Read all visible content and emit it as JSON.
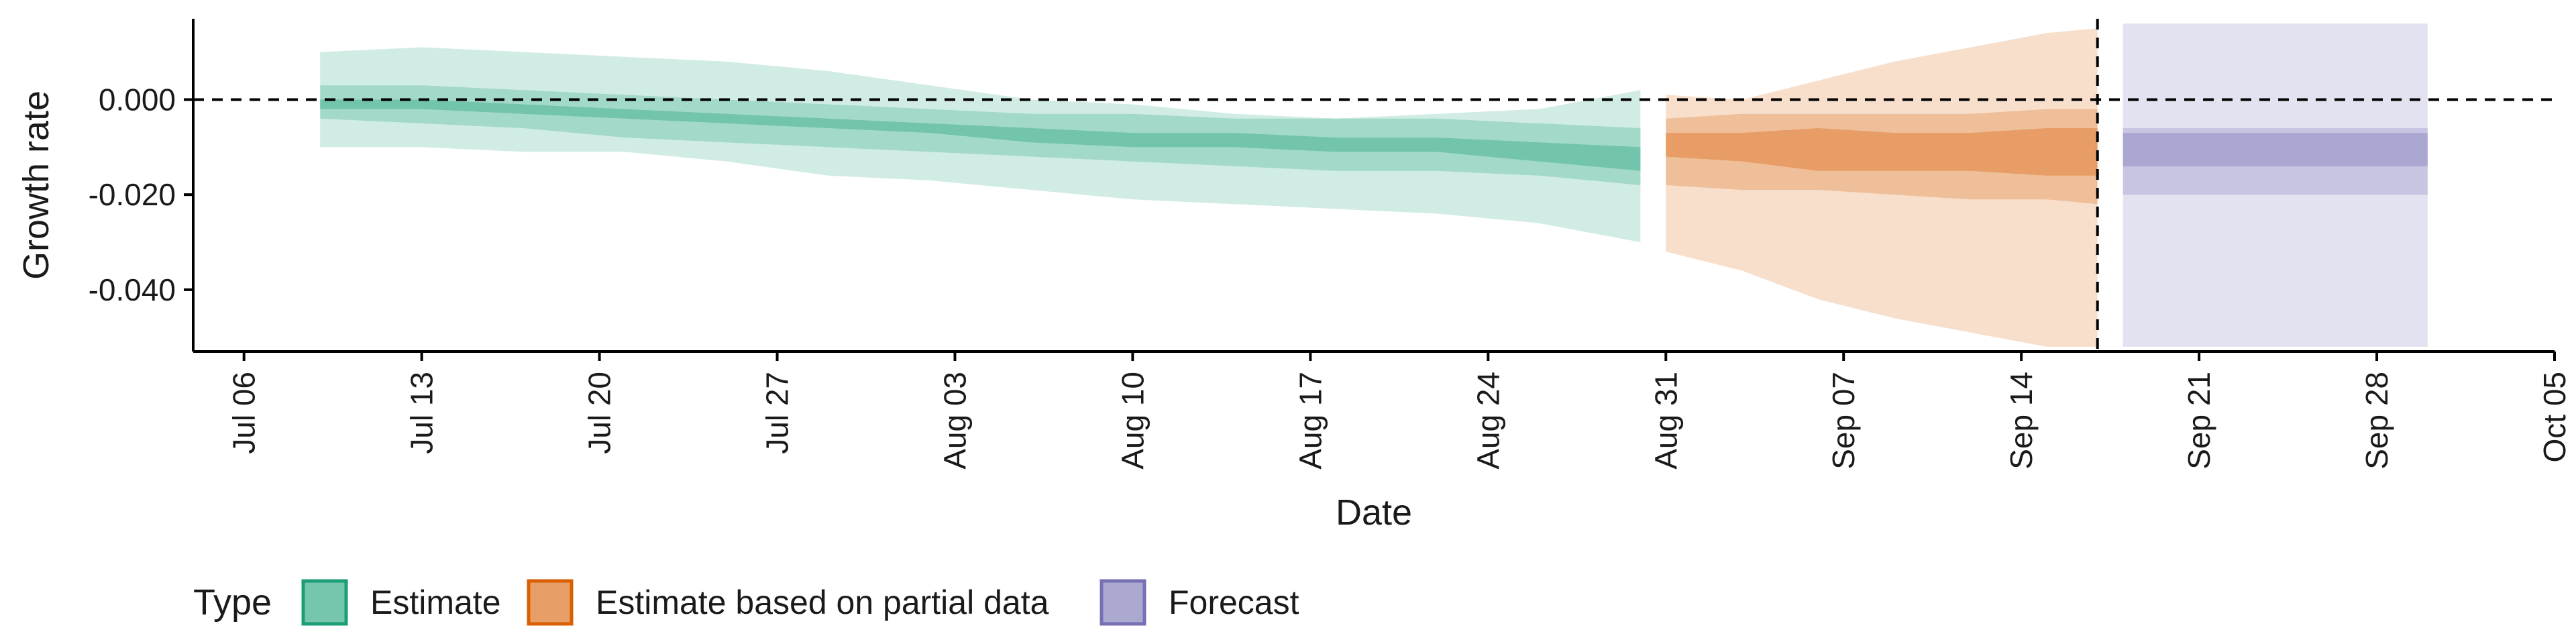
{
  "chart_data": {
    "type": "area",
    "title": "",
    "xlabel": "Date",
    "ylabel": "Growth rate",
    "x_range": [
      "2020-07-04",
      "2020-10-05"
    ],
    "ylim": [
      -0.053,
      0.017
    ],
    "x_ticks": [
      {
        "date": "2020-07-06",
        "label": "Jul 06"
      },
      {
        "date": "2020-07-13",
        "label": "Jul 13"
      },
      {
        "date": "2020-07-20",
        "label": "Jul 20"
      },
      {
        "date": "2020-07-27",
        "label": "Jul 27"
      },
      {
        "date": "2020-08-03",
        "label": "Aug 03"
      },
      {
        "date": "2020-08-10",
        "label": "Aug 10"
      },
      {
        "date": "2020-08-17",
        "label": "Aug 17"
      },
      {
        "date": "2020-08-24",
        "label": "Aug 24"
      },
      {
        "date": "2020-08-31",
        "label": "Aug 31"
      },
      {
        "date": "2020-09-07",
        "label": "Sep 07"
      },
      {
        "date": "2020-09-14",
        "label": "Sep 14"
      },
      {
        "date": "2020-09-21",
        "label": "Sep 21"
      },
      {
        "date": "2020-09-28",
        "label": "Sep 28"
      },
      {
        "date": "2020-10-05",
        "label": "Oct 05"
      }
    ],
    "y_ticks": [
      {
        "value": 0.0,
        "label": "0.000"
      },
      {
        "value": -0.02,
        "label": "-0.020"
      },
      {
        "value": -0.04,
        "label": "-0.040"
      }
    ],
    "hline_y": 0,
    "vline_date": "2020-09-17",
    "grid": false,
    "legend": {
      "title": "Type",
      "position": "bottom-left",
      "items": [
        {
          "label": "Estimate",
          "color": "#1b9e77"
        },
        {
          "label": "Estimate based on partial data",
          "color": "#d95f02"
        },
        {
          "label": "Forecast",
          "color": "#7570b3"
        }
      ]
    },
    "series": [
      {
        "name": "Estimate",
        "color": "#1b9e77",
        "step": false,
        "x": [
          "2020-07-09",
          "2020-07-13",
          "2020-07-17",
          "2020-07-21",
          "2020-07-25",
          "2020-07-29",
          "2020-08-02",
          "2020-08-06",
          "2020-08-10",
          "2020-08-14",
          "2020-08-18",
          "2020-08-22",
          "2020-08-26",
          "2020-08-30"
        ],
        "outer_upper": [
          0.01,
          0.011,
          0.01,
          0.009,
          0.008,
          0.006,
          0.003,
          0.0,
          -0.001,
          -0.003,
          -0.004,
          -0.003,
          -0.002,
          0.002
        ],
        "outer_lower": [
          -0.01,
          -0.01,
          -0.011,
          -0.011,
          -0.013,
          -0.016,
          -0.017,
          -0.019,
          -0.021,
          -0.022,
          -0.023,
          -0.024,
          -0.026,
          -0.03
        ],
        "mid_upper": [
          0.003,
          0.003,
          0.002,
          0.001,
          0.0,
          -0.001,
          -0.002,
          -0.003,
          -0.003,
          -0.004,
          -0.004,
          -0.004,
          -0.005,
          -0.006
        ],
        "mid_lower": [
          -0.004,
          -0.005,
          -0.006,
          -0.008,
          -0.009,
          -0.01,
          -0.011,
          -0.012,
          -0.013,
          -0.014,
          -0.015,
          -0.015,
          -0.016,
          -0.018
        ],
        "inner_upper": [
          0.0,
          0.0,
          -0.001,
          -0.002,
          -0.003,
          -0.004,
          -0.005,
          -0.006,
          -0.007,
          -0.007,
          -0.008,
          -0.008,
          -0.009,
          -0.01
        ],
        "inner_lower": [
          -0.002,
          -0.002,
          -0.003,
          -0.004,
          -0.005,
          -0.006,
          -0.007,
          -0.009,
          -0.01,
          -0.01,
          -0.011,
          -0.011,
          -0.013,
          -0.015
        ]
      },
      {
        "name": "Estimate based on partial data",
        "color": "#d95f02",
        "step": false,
        "x": [
          "2020-08-31",
          "2020-09-03",
          "2020-09-06",
          "2020-09-09",
          "2020-09-12",
          "2020-09-15",
          "2020-09-17"
        ],
        "outer_upper": [
          0.001,
          0.0,
          0.004,
          0.008,
          0.011,
          0.014,
          0.015
        ],
        "outer_lower": [
          -0.032,
          -0.036,
          -0.042,
          -0.046,
          -0.049,
          -0.052,
          -0.052
        ],
        "mid_upper": [
          -0.004,
          -0.003,
          -0.003,
          -0.003,
          -0.003,
          -0.002,
          -0.002
        ],
        "mid_lower": [
          -0.018,
          -0.019,
          -0.019,
          -0.02,
          -0.021,
          -0.021,
          -0.022
        ],
        "inner_upper": [
          -0.007,
          -0.007,
          -0.006,
          -0.007,
          -0.007,
          -0.006,
          -0.006
        ],
        "inner_lower": [
          -0.012,
          -0.013,
          -0.015,
          -0.015,
          -0.015,
          -0.016,
          -0.016
        ]
      },
      {
        "name": "Forecast",
        "color": "#7570b3",
        "step": true,
        "x": [
          "2020-09-18",
          "2020-09-30"
        ],
        "outer_upper": [
          0.016,
          0.016
        ],
        "outer_lower": [
          -0.052,
          -0.052
        ],
        "mid_upper": [
          -0.006,
          -0.006
        ],
        "mid_lower": [
          -0.02,
          -0.02
        ],
        "inner_upper": [
          -0.007,
          -0.007
        ],
        "inner_lower": [
          -0.014,
          -0.014
        ]
      }
    ]
  }
}
